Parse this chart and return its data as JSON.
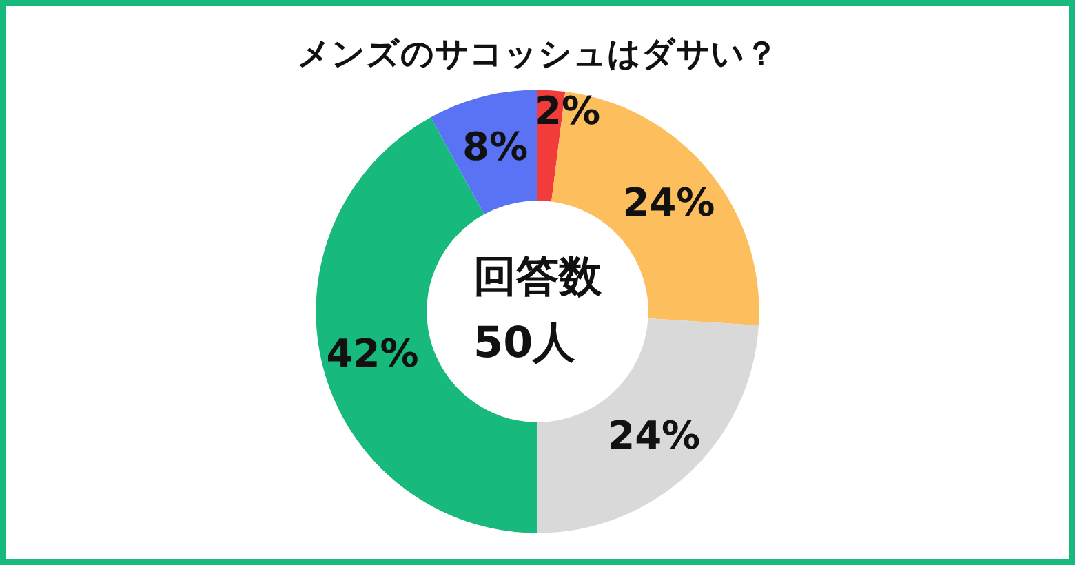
{
  "chart_data": {
    "type": "donut",
    "title": "メンズのサコッシュはダサい？",
    "categories": [
      null,
      null,
      null,
      null,
      null
    ],
    "values": [
      2,
      24,
      24,
      42,
      8
    ],
    "value_labels": [
      "2%",
      "24%",
      "24%",
      "42%",
      "8%"
    ],
    "colors": [
      "#f23b3b",
      "#fdbe5d",
      "#d9d9d9",
      "#18b97c",
      "#5a73f5"
    ],
    "annotations": [
      "回答数\n50人"
    ]
  }
}
